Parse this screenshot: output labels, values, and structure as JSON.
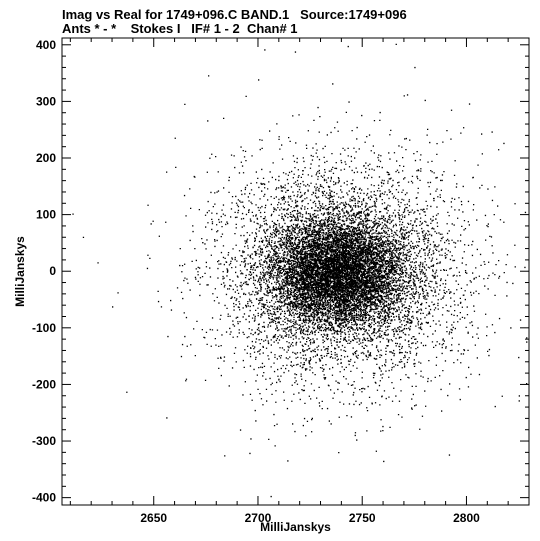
{
  "chart_data": {
    "type": "scatter",
    "title": "Imag vs Real for 1749+096.C BAND.1   Source:1749+096",
    "subtitle": "Ants * - *    Stokes I   IF# 1 - 2  Chan# 1",
    "xlabel": "MilliJanskys",
    "ylabel": "MilliJanskys",
    "xlim": [
      2606,
      2830
    ],
    "ylim": [
      -413,
      412
    ],
    "xticks": [
      2650,
      2700,
      2750,
      2800
    ],
    "yticks": [
      -400,
      -300,
      -200,
      -100,
      0,
      100,
      200,
      300,
      400
    ],
    "tick_labels_x": [
      "2650",
      "2700",
      "2750",
      "2800"
    ],
    "tick_labels_y": [
      "-400",
      "-300",
      "-200",
      "-100",
      "0",
      "100",
      "200",
      "300",
      "400"
    ],
    "grid": false,
    "series": [
      {
        "point_color": "#000000",
        "distribution": {
          "center": [
            2738,
            -2
          ],
          "core_std": [
            16,
            45
          ],
          "outer_std": [
            30,
            100
          ],
          "n_core": 7000,
          "n_outer": 5500
        },
        "points": [
          [
            2703,
            392
          ],
          [
            2743,
            398
          ],
          [
            2766,
            402
          ],
          [
            2706,
            -397
          ],
          [
            2760,
            -335
          ],
          [
            2714,
            -334
          ],
          [
            2656,
            -258
          ],
          [
            2611,
            102
          ],
          [
            2623,
            16
          ],
          [
            2616,
            61
          ],
          [
            2630,
            -62
          ],
          [
            2813,
            101
          ],
          [
            2828,
            105
          ],
          [
            2821,
            -99
          ],
          [
            2825,
            -228
          ],
          [
            2660,
            236
          ],
          [
            2694,
            310
          ],
          [
            2775,
            361
          ],
          [
            2812,
            247
          ],
          [
            2797,
            245
          ]
        ]
      }
    ]
  }
}
